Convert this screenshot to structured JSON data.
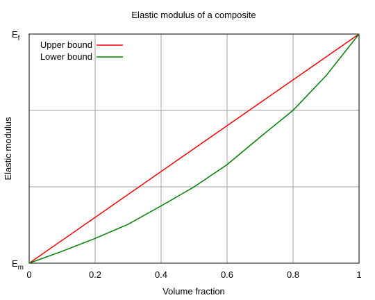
{
  "chart_data": {
    "type": "line",
    "title": "Elastic modulus of a composite",
    "xlabel": "Volume fraction",
    "ylabel": "Elastic modulus",
    "xlim": [
      0,
      1
    ],
    "ylim": [
      0,
      1
    ],
    "x_ticks": [
      "0",
      "0.2",
      "0.4",
      "0.6",
      "0.8",
      "1"
    ],
    "y_ticks": [
      {
        "main": "E",
        "sub": "m",
        "value": 0
      },
      {
        "main": "E",
        "sub": "f",
        "value": 1
      }
    ],
    "grid": true,
    "legend_position": "top-left",
    "series": [
      {
        "name": "Upper bound",
        "color": "#ff0000",
        "x": [
          0,
          0.2,
          0.4,
          0.6,
          0.8,
          1
        ],
        "y": [
          0,
          0.2,
          0.4,
          0.6,
          0.8,
          1
        ]
      },
      {
        "name": "Lower bound",
        "color": "#008000",
        "x": [
          0,
          0.1,
          0.2,
          0.3,
          0.4,
          0.5,
          0.6,
          0.7,
          0.8,
          0.9,
          1
        ],
        "y": [
          0,
          0.052,
          0.108,
          0.17,
          0.25,
          0.333,
          0.43,
          0.55,
          0.667,
          0.818,
          1
        ]
      }
    ]
  }
}
